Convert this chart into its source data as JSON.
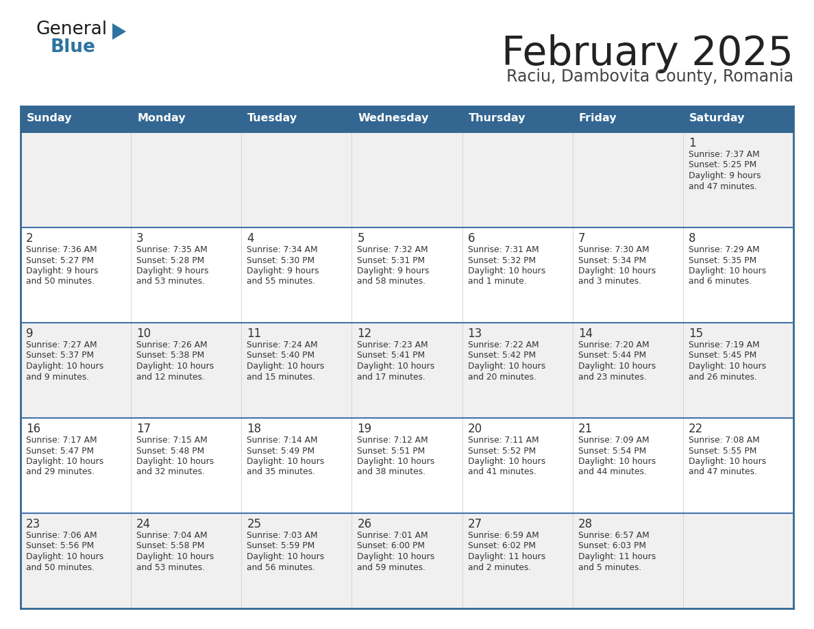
{
  "title": "February 2025",
  "subtitle": "Raciu, Dambovita County, Romania",
  "days_of_week": [
    "Sunday",
    "Monday",
    "Tuesday",
    "Wednesday",
    "Thursday",
    "Friday",
    "Saturday"
  ],
  "header_bg": "#336791",
  "header_text": "#FFFFFF",
  "cell_bg_row0": "#F0F0F0",
  "cell_bg_row1": "#FFFFFF",
  "cell_bg_row2": "#F0F0F0",
  "cell_bg_row3": "#FFFFFF",
  "cell_bg_row4": "#F0F0F0",
  "cell_text": "#333333",
  "border_color": "#336791",
  "row_separator_color": "#4472A8",
  "title_color": "#222222",
  "subtitle_color": "#444444",
  "calendar_data": [
    [
      null,
      null,
      null,
      null,
      null,
      null,
      {
        "day": "1",
        "sunrise": "7:37 AM",
        "sunset": "5:25 PM",
        "daylight": "9 hours",
        "daylight2": "and 47 minutes."
      }
    ],
    [
      {
        "day": "2",
        "sunrise": "7:36 AM",
        "sunset": "5:27 PM",
        "daylight": "9 hours",
        "daylight2": "and 50 minutes."
      },
      {
        "day": "3",
        "sunrise": "7:35 AM",
        "sunset": "5:28 PM",
        "daylight": "9 hours",
        "daylight2": "and 53 minutes."
      },
      {
        "day": "4",
        "sunrise": "7:34 AM",
        "sunset": "5:30 PM",
        "daylight": "9 hours",
        "daylight2": "and 55 minutes."
      },
      {
        "day": "5",
        "sunrise": "7:32 AM",
        "sunset": "5:31 PM",
        "daylight": "9 hours",
        "daylight2": "and 58 minutes."
      },
      {
        "day": "6",
        "sunrise": "7:31 AM",
        "sunset": "5:32 PM",
        "daylight": "10 hours",
        "daylight2": "and 1 minute."
      },
      {
        "day": "7",
        "sunrise": "7:30 AM",
        "sunset": "5:34 PM",
        "daylight": "10 hours",
        "daylight2": "and 3 minutes."
      },
      {
        "day": "8",
        "sunrise": "7:29 AM",
        "sunset": "5:35 PM",
        "daylight": "10 hours",
        "daylight2": "and 6 minutes."
      }
    ],
    [
      {
        "day": "9",
        "sunrise": "7:27 AM",
        "sunset": "5:37 PM",
        "daylight": "10 hours",
        "daylight2": "and 9 minutes."
      },
      {
        "day": "10",
        "sunrise": "7:26 AM",
        "sunset": "5:38 PM",
        "daylight": "10 hours",
        "daylight2": "and 12 minutes."
      },
      {
        "day": "11",
        "sunrise": "7:24 AM",
        "sunset": "5:40 PM",
        "daylight": "10 hours",
        "daylight2": "and 15 minutes."
      },
      {
        "day": "12",
        "sunrise": "7:23 AM",
        "sunset": "5:41 PM",
        "daylight": "10 hours",
        "daylight2": "and 17 minutes."
      },
      {
        "day": "13",
        "sunrise": "7:22 AM",
        "sunset": "5:42 PM",
        "daylight": "10 hours",
        "daylight2": "and 20 minutes."
      },
      {
        "day": "14",
        "sunrise": "7:20 AM",
        "sunset": "5:44 PM",
        "daylight": "10 hours",
        "daylight2": "and 23 minutes."
      },
      {
        "day": "15",
        "sunrise": "7:19 AM",
        "sunset": "5:45 PM",
        "daylight": "10 hours",
        "daylight2": "and 26 minutes."
      }
    ],
    [
      {
        "day": "16",
        "sunrise": "7:17 AM",
        "sunset": "5:47 PM",
        "daylight": "10 hours",
        "daylight2": "and 29 minutes."
      },
      {
        "day": "17",
        "sunrise": "7:15 AM",
        "sunset": "5:48 PM",
        "daylight": "10 hours",
        "daylight2": "and 32 minutes."
      },
      {
        "day": "18",
        "sunrise": "7:14 AM",
        "sunset": "5:49 PM",
        "daylight": "10 hours",
        "daylight2": "and 35 minutes."
      },
      {
        "day": "19",
        "sunrise": "7:12 AM",
        "sunset": "5:51 PM",
        "daylight": "10 hours",
        "daylight2": "and 38 minutes."
      },
      {
        "day": "20",
        "sunrise": "7:11 AM",
        "sunset": "5:52 PM",
        "daylight": "10 hours",
        "daylight2": "and 41 minutes."
      },
      {
        "day": "21",
        "sunrise": "7:09 AM",
        "sunset": "5:54 PM",
        "daylight": "10 hours",
        "daylight2": "and 44 minutes."
      },
      {
        "day": "22",
        "sunrise": "7:08 AM",
        "sunset": "5:55 PM",
        "daylight": "10 hours",
        "daylight2": "and 47 minutes."
      }
    ],
    [
      {
        "day": "23",
        "sunrise": "7:06 AM",
        "sunset": "5:56 PM",
        "daylight": "10 hours",
        "daylight2": "and 50 minutes."
      },
      {
        "day": "24",
        "sunrise": "7:04 AM",
        "sunset": "5:58 PM",
        "daylight": "10 hours",
        "daylight2": "and 53 minutes."
      },
      {
        "day": "25",
        "sunrise": "7:03 AM",
        "sunset": "5:59 PM",
        "daylight": "10 hours",
        "daylight2": "and 56 minutes."
      },
      {
        "day": "26",
        "sunrise": "7:01 AM",
        "sunset": "6:00 PM",
        "daylight": "10 hours",
        "daylight2": "and 59 minutes."
      },
      {
        "day": "27",
        "sunrise": "6:59 AM",
        "sunset": "6:02 PM",
        "daylight": "11 hours",
        "daylight2": "and 2 minutes."
      },
      {
        "day": "28",
        "sunrise": "6:57 AM",
        "sunset": "6:03 PM",
        "daylight": "11 hours",
        "daylight2": "and 5 minutes."
      },
      null
    ]
  ]
}
